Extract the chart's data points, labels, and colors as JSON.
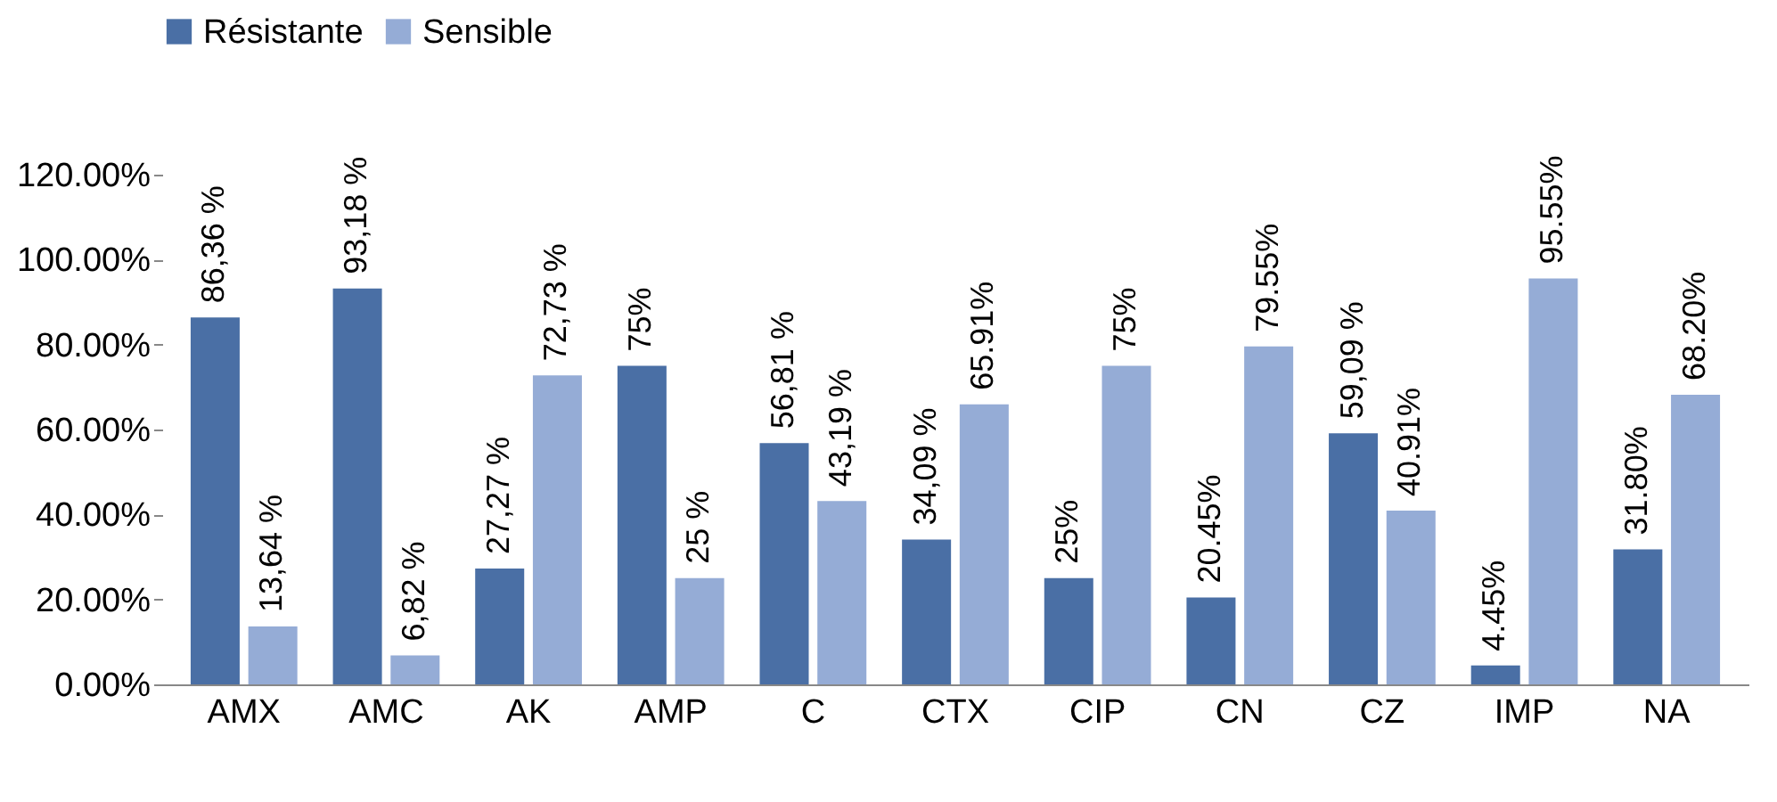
{
  "chart_data": {
    "type": "bar",
    "categories": [
      "AMX",
      "AMC",
      "AK",
      "AMP",
      "C",
      "CTX",
      "CIP",
      "CN",
      "CZ",
      "IMP",
      "NA"
    ],
    "series": [
      {
        "name": "Résistante",
        "color": "#4a6fa5",
        "values": [
          86.36,
          93.18,
          27.27,
          75,
          56.81,
          34.09,
          25,
          20.45,
          59.09,
          4.45,
          31.8
        ],
        "value_labels": [
          "86,36 %",
          "93,18 %",
          "27,27 %",
          "75%",
          "56,81 %",
          "34,09 %",
          "25%",
          "20.45%",
          "59,09 %",
          "4.45%",
          "31.80%"
        ]
      },
      {
        "name": "Sensible",
        "color": "#95acd6",
        "values": [
          13.64,
          6.82,
          72.73,
          25,
          43.19,
          65.91,
          75,
          79.55,
          40.91,
          95.55,
          68.2
        ],
        "value_labels": [
          "13,64 %",
          "6,82 %",
          "72,73 %",
          "25 %",
          "43,19 %",
          "65.91%",
          "75%",
          "79.55%",
          "40.91%",
          "95.55%",
          "68.20%"
        ]
      }
    ],
    "ylim": [
      0,
      120
    ],
    "yticks": [
      {
        "value": 0,
        "label": "0.00%"
      },
      {
        "value": 20,
        "label": "20.00%"
      },
      {
        "value": 40,
        "label": "40.00%"
      },
      {
        "value": 60,
        "label": "60.00%"
      },
      {
        "value": 80,
        "label": "80.00%"
      },
      {
        "value": 100,
        "label": "100.00%"
      },
      {
        "value": 120,
        "label": "120.00%"
      }
    ],
    "legend": "top",
    "grid": false
  }
}
